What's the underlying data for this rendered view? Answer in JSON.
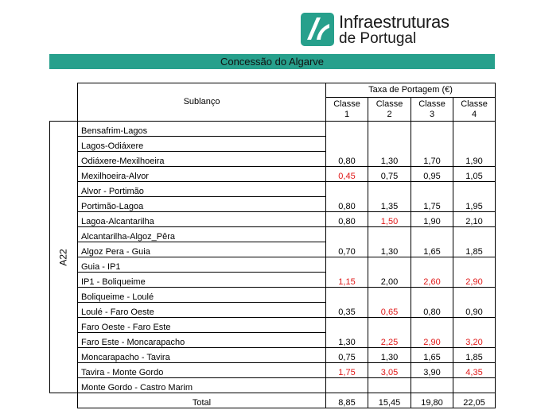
{
  "logo": {
    "line1": "Infraestruturas",
    "line2": "de Portugal"
  },
  "colors": {
    "brand": "#27a08c",
    "highlight": "#e01919"
  },
  "banner": "Concessão do Algarve",
  "header": {
    "sublanco": "Sublanço",
    "taxa": "Taxa de Portagem (€)",
    "classes": [
      {
        "line1": "Classe",
        "line2": "1"
      },
      {
        "line1": "Classe",
        "line2": "2"
      },
      {
        "line1": "Classe",
        "line2": "3"
      },
      {
        "line1": "Classe",
        "line2": "4"
      }
    ]
  },
  "road": "A22",
  "rows": [
    {
      "name": "Bensafrim-Lagos"
    },
    {
      "name": "Lagos-Odiáxere"
    },
    {
      "name": "Odiáxere-Mexilhoeira",
      "values": [
        "0,80",
        "1,30",
        "1,70",
        "1,90"
      ],
      "red": [
        false,
        false,
        false,
        false
      ]
    },
    {
      "name": "Mexilhoeira-Alvor",
      "values": [
        "0,45",
        "0,75",
        "0,95",
        "1,05"
      ],
      "red": [
        true,
        false,
        false,
        false
      ]
    },
    {
      "name": "Alvor - Portimão"
    },
    {
      "name": "Portimão-Lagoa",
      "values": [
        "0,80",
        "1,35",
        "1,75",
        "1,95"
      ],
      "red": [
        false,
        false,
        false,
        false
      ]
    },
    {
      "name": "Lagoa-Alcantarilha",
      "values": [
        "0,80",
        "1,50",
        "1,90",
        "2,10"
      ],
      "red": [
        false,
        true,
        false,
        false
      ]
    },
    {
      "name": "Alcantarilha-Algoz_Pêra"
    },
    {
      "name": "Algoz Pera - Guia",
      "values": [
        "0,70",
        "1,30",
        "1,65",
        "1,85"
      ],
      "red": [
        false,
        false,
        false,
        false
      ]
    },
    {
      "name": "Guia - IP1"
    },
    {
      "name": "IP1 - Boliqueime",
      "values": [
        "1,15",
        "2,00",
        "2,60",
        "2,90"
      ],
      "red": [
        true,
        false,
        true,
        true
      ]
    },
    {
      "name": "Boliqueime - Loulé"
    },
    {
      "name": "Loulé - Faro Oeste",
      "values": [
        "0,35",
        "0,65",
        "0,80",
        "0,90"
      ],
      "red": [
        false,
        true,
        false,
        false
      ]
    },
    {
      "name": "Faro Oeste - Faro Este"
    },
    {
      "name": "Faro Este - Moncarapacho",
      "values": [
        "1,30",
        "2,25",
        "2,90",
        "3,20"
      ],
      "red": [
        false,
        true,
        true,
        true
      ]
    },
    {
      "name": "Moncarapacho - Tavira",
      "values": [
        "0,75",
        "1,30",
        "1,65",
        "1,85"
      ],
      "red": [
        false,
        false,
        false,
        false
      ]
    },
    {
      "name": "Tavira - Monte Gordo",
      "values": [
        "1,75",
        "3,05",
        "3,90",
        "4,35"
      ],
      "red": [
        true,
        true,
        false,
        true
      ]
    },
    {
      "name": "Monte Gordo - Castro Marim"
    }
  ],
  "total": {
    "label": "Total",
    "values": [
      "8,85",
      "15,45",
      "19,80",
      "22,05"
    ]
  }
}
